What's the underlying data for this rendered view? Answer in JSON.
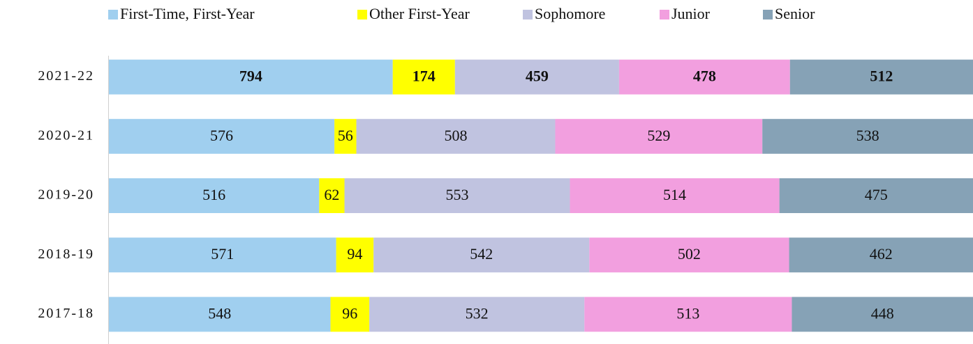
{
  "chart_data": {
    "type": "bar",
    "orientation": "horizontal",
    "stacking": "percent",
    "legend": "top",
    "categories": [
      "2021-22",
      "2020-21",
      "2019-20",
      "2018-19",
      "2017-18"
    ],
    "series": [
      {
        "name": "First-Time, First-Year",
        "color": "#a0cfef",
        "values": [
          794,
          576,
          516,
          571,
          548
        ]
      },
      {
        "name": "Other First-Year",
        "color": "#ffff00",
        "values": [
          174,
          56,
          62,
          94,
          96
        ]
      },
      {
        "name": "Sophomore",
        "color": "#c0c3e0",
        "values": [
          459,
          508,
          553,
          542,
          532
        ]
      },
      {
        "name": "Junior",
        "color": "#f29fdf",
        "values": [
          478,
          529,
          514,
          502,
          513
        ]
      },
      {
        "name": "Senior",
        "color": "#86a2b6",
        "values": [
          512,
          538,
          475,
          462,
          448
        ]
      }
    ]
  }
}
